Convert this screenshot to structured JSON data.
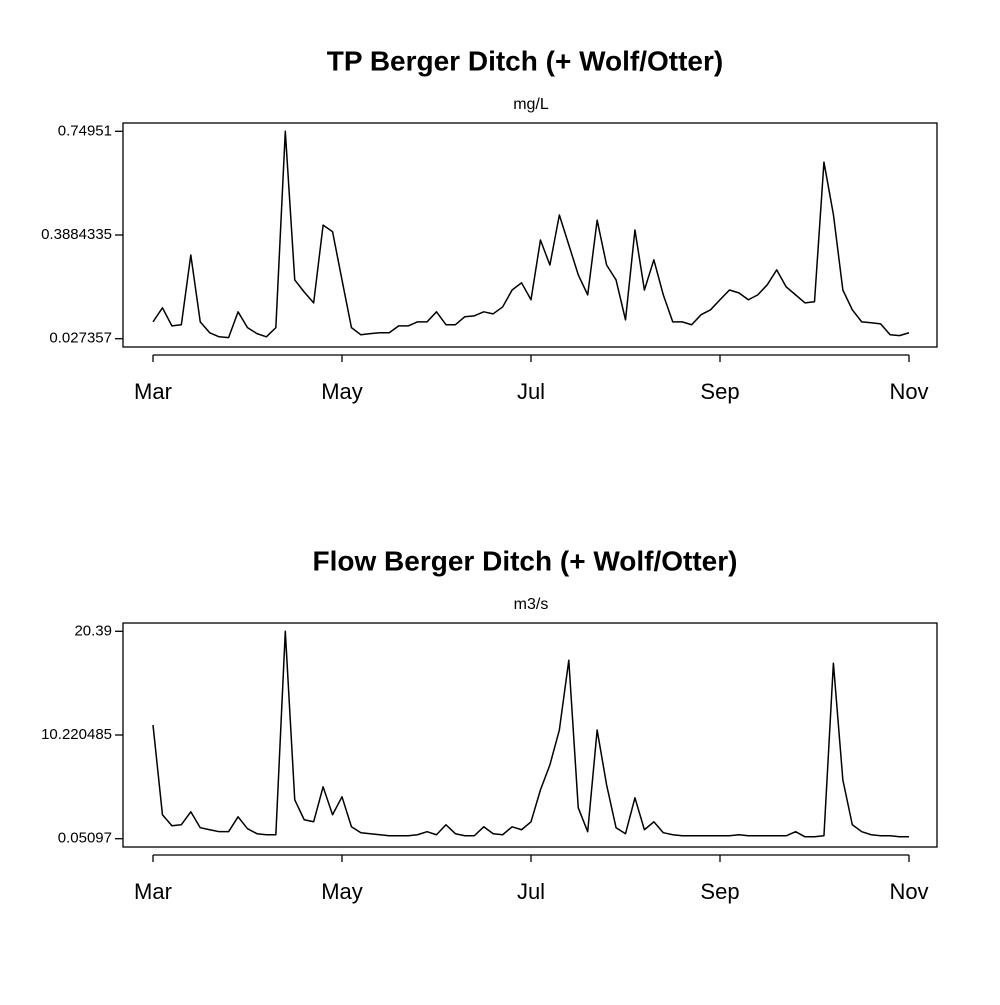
{
  "chart_data": [
    {
      "type": "line",
      "title": "TP Berger Ditch (+ Wolf/Otter)",
      "subtitle": "mg/L",
      "categories": [
        "Mar",
        null,
        null,
        null,
        null,
        null,
        null,
        null,
        null,
        null,
        null,
        null,
        null,
        null,
        null,
        null,
        null,
        null,
        null,
        null,
        "May",
        null,
        null,
        null,
        null,
        null,
        null,
        null,
        null,
        null,
        null,
        null,
        null,
        null,
        null,
        null,
        null,
        null,
        null,
        null,
        "Jul",
        null,
        null,
        null,
        null,
        null,
        null,
        null,
        null,
        null,
        null,
        null,
        null,
        null,
        null,
        null,
        null,
        null,
        null,
        null,
        "Sep",
        null,
        null,
        null,
        null,
        null,
        null,
        null,
        null,
        null,
        null,
        null,
        null,
        null,
        null,
        null,
        null,
        null,
        null,
        null,
        "Nov"
      ],
      "values": [
        0.086,
        0.135,
        0.072,
        0.076,
        0.319,
        0.086,
        0.048,
        0.034,
        0.031,
        0.121,
        0.066,
        0.045,
        0.034,
        0.066,
        0.7495,
        0.232,
        0.19,
        0.152,
        0.423,
        0.4,
        0.232,
        0.066,
        0.041,
        0.045,
        0.048,
        0.048,
        0.072,
        0.072,
        0.086,
        0.086,
        0.121,
        0.076,
        0.076,
        0.104,
        0.107,
        0.121,
        0.114,
        0.138,
        0.197,
        0.222,
        0.163,
        0.371,
        0.284,
        0.458,
        0.354,
        0.25,
        0.18,
        0.44,
        0.284,
        0.232,
        0.093,
        0.406,
        0.197,
        0.302,
        0.18,
        0.086,
        0.086,
        0.076,
        0.111,
        0.128,
        0.163,
        0.197,
        0.187,
        0.163,
        0.18,
        0.215,
        0.267,
        0.208,
        0.18,
        0.152,
        0.156,
        0.642,
        0.46,
        0.197,
        0.128,
        0.086,
        0.083,
        0.079,
        0.041,
        0.038,
        0.048
      ],
      "color": "#000000",
      "ylim": [
        -0.0015,
        0.7784
      ],
      "yticks": [
        0.027357,
        0.3884335,
        0.74951
      ]
    },
    {
      "type": "line",
      "title": "Flow Berger Ditch (+ Wolf/Otter)",
      "subtitle": "m3/s",
      "categories": [
        "Mar",
        null,
        null,
        null,
        null,
        null,
        null,
        null,
        null,
        null,
        null,
        null,
        null,
        null,
        null,
        null,
        null,
        null,
        null,
        null,
        "May",
        null,
        null,
        null,
        null,
        null,
        null,
        null,
        null,
        null,
        null,
        null,
        null,
        null,
        null,
        null,
        null,
        null,
        null,
        null,
        "Jul",
        null,
        null,
        null,
        null,
        null,
        null,
        null,
        null,
        null,
        null,
        null,
        null,
        null,
        null,
        null,
        null,
        null,
        null,
        null,
        "Sep",
        null,
        null,
        null,
        null,
        null,
        null,
        null,
        null,
        null,
        null,
        null,
        null,
        null,
        null,
        null,
        null,
        null,
        null,
        null,
        "Nov"
      ],
      "values": [
        11.2,
        2.4,
        1.32,
        1.42,
        2.69,
        1.13,
        0.93,
        0.74,
        0.74,
        2.2,
        1.03,
        0.54,
        0.44,
        0.44,
        20.39,
        3.86,
        1.91,
        1.71,
        5.14,
        2.4,
        4.16,
        1.22,
        0.64,
        0.54,
        0.44,
        0.34,
        0.34,
        0.34,
        0.44,
        0.74,
        0.44,
        1.42,
        0.54,
        0.34,
        0.34,
        1.22,
        0.54,
        0.44,
        1.22,
        0.93,
        1.71,
        4.84,
        7.29,
        10.71,
        17.55,
        3.08,
        0.74,
        10.71,
        5.33,
        1.13,
        0.54,
        4.06,
        0.93,
        1.71,
        0.64,
        0.44,
        0.34,
        0.34,
        0.34,
        0.34,
        0.34,
        0.34,
        0.44,
        0.34,
        0.34,
        0.34,
        0.34,
        0.34,
        0.74,
        0.24,
        0.24,
        0.34,
        17.26,
        5.82,
        1.42,
        0.74,
        0.44,
        0.34,
        0.34,
        0.24,
        0.24
      ],
      "color": "#000000",
      "ylim": [
        -0.7626,
        21.2036
      ],
      "yticks": [
        0.05097,
        10.220485,
        20.39
      ]
    }
  ]
}
